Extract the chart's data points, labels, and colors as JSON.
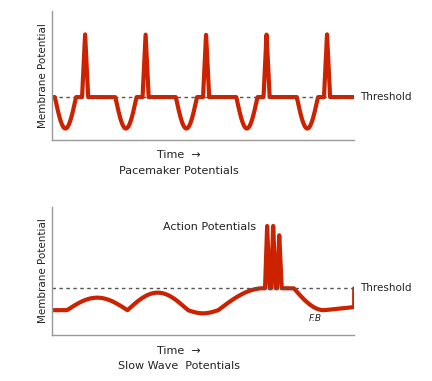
{
  "background_color": "#ffffff",
  "line_color": "#cc2200",
  "line_width": 3.0,
  "threshold_color": "#555555",
  "text_color": "#222222",
  "top_title": "Pacemaker Potentials",
  "bottom_title": "Slow Wave  Potentials",
  "threshold_label": "Threshold",
  "action_potential_label": "Action Potentials",
  "xlabel": "Time",
  "ylabel": "Membrane Potential",
  "fb_label": "F.B",
  "axis_color": "#999999"
}
